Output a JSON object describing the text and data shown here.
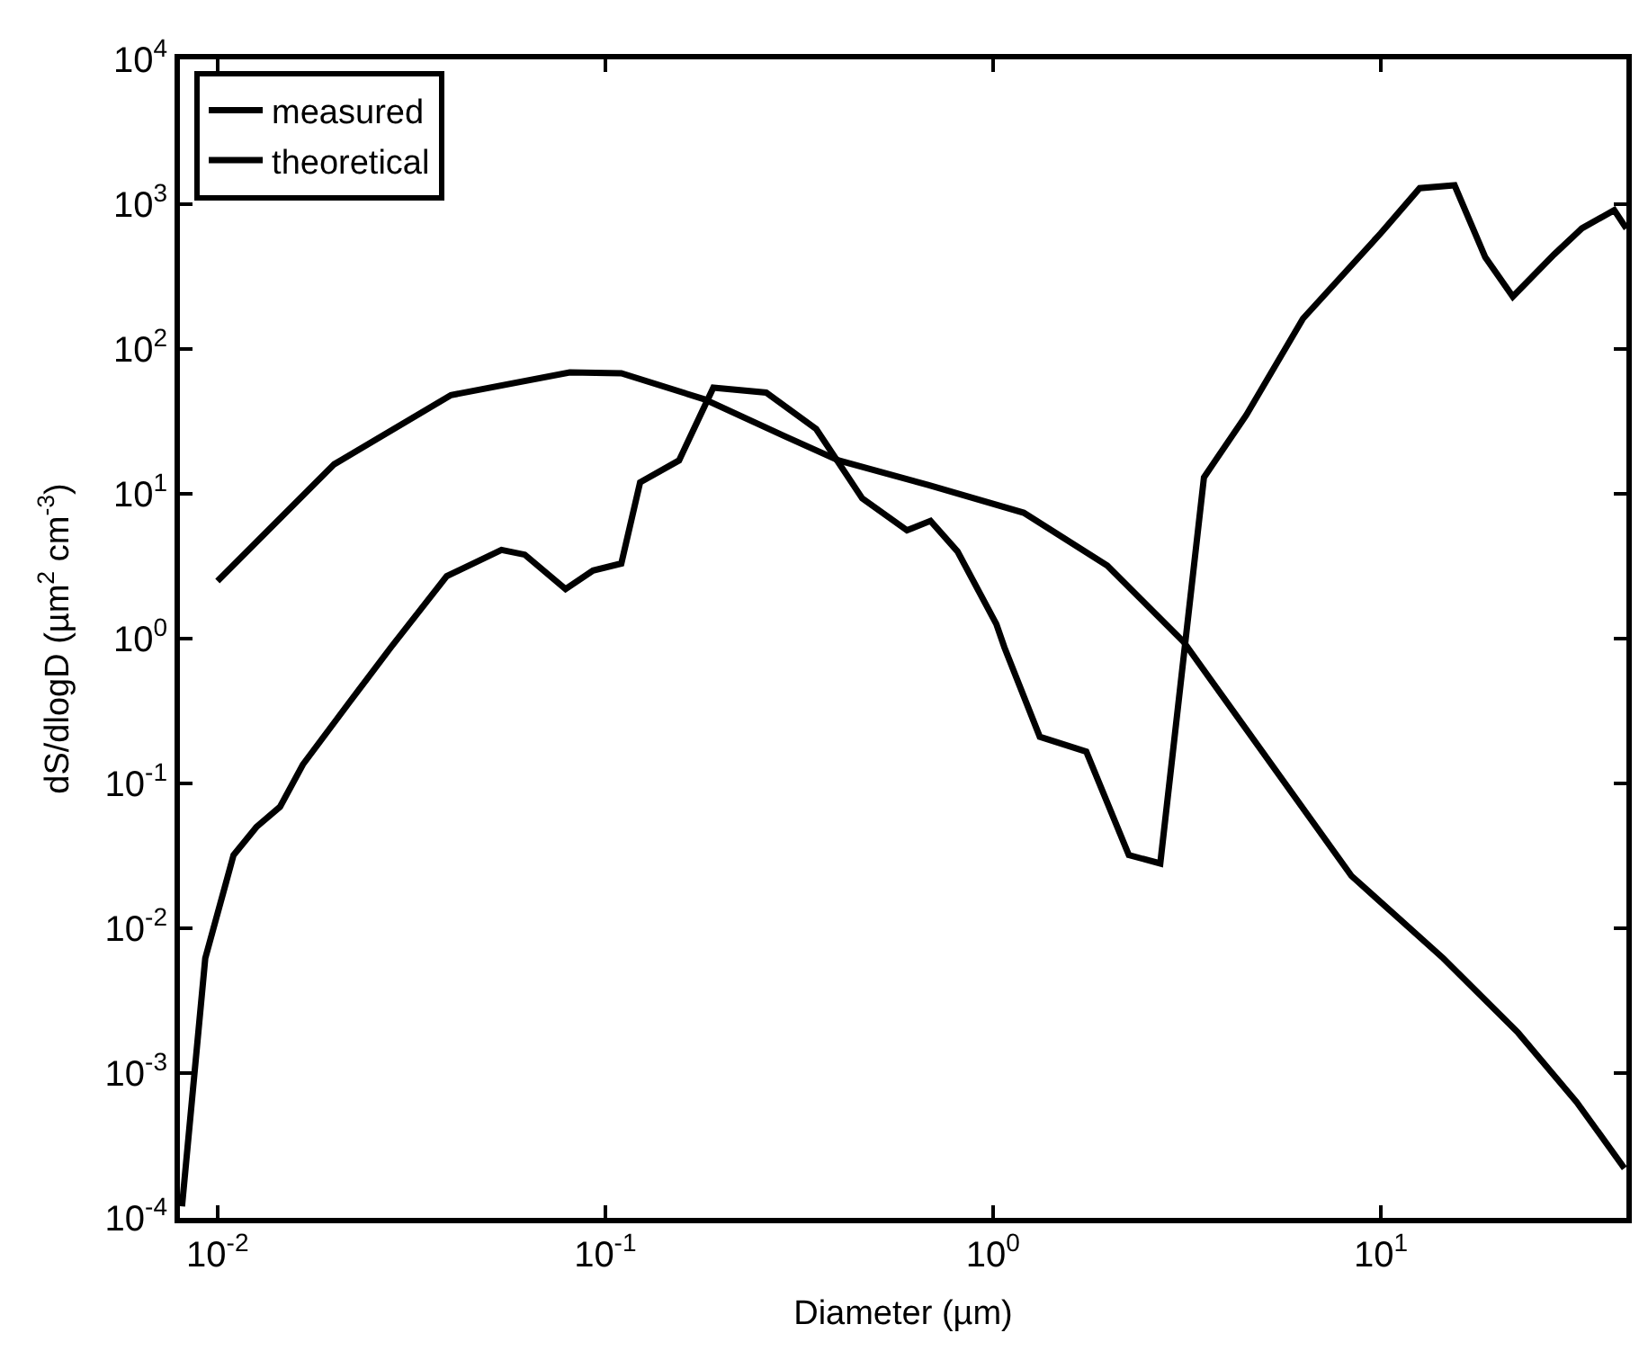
{
  "chart_data": {
    "type": "line",
    "xlabel": "Diameter (µm)",
    "ylabel": "dS/dlogD (µm$^{2}$ cm$^{-3}$)",
    "log": "xy",
    "legend": "top left",
    "marker": "none",
    "line_style": "solid",
    "xlim": [
      0.008,
      43
    ],
    "ylim": [
      0.0001,
      10000
    ],
    "xticks": [
      {
        "value": 0.01,
        "label": "10$^{-2}$"
      },
      {
        "value": 0.1,
        "label": "10$^{-1}$"
      },
      {
        "value": 1,
        "label": "10$^{0}$"
      },
      {
        "value": 10,
        "label": "10$^{1}$"
      }
    ],
    "yticks": [
      {
        "value": 0.0001,
        "label": "10$^{-4}$"
      },
      {
        "value": 0.001,
        "label": "10$^{-3}$"
      },
      {
        "value": 0.01,
        "label": "10$^{-2}$"
      },
      {
        "value": 0.1,
        "label": "10$^{-1}$"
      },
      {
        "value": 1,
        "label": "10$^{0}$"
      },
      {
        "value": 10,
        "label": "10$^{1}$"
      },
      {
        "value": 100,
        "label": "10$^{2}$"
      },
      {
        "value": 1000,
        "label": "10$^{3}$"
      },
      {
        "value": 10000,
        "label": "10$^{4}$"
      }
    ],
    "series": [
      {
        "name": "measured",
        "color": "#000000",
        "x": [
          0.0081,
          0.0093,
          0.011,
          0.0126,
          0.0145,
          0.0166,
          0.022,
          0.028,
          0.039,
          0.054,
          0.062,
          0.079,
          0.093,
          0.11,
          0.123,
          0.155,
          0.19,
          0.26,
          0.35,
          0.46,
          0.6,
          0.69,
          0.81,
          1.02,
          1.07,
          1.32,
          1.74,
          2.24,
          2.7,
          3.5,
          4.5,
          6.3,
          10,
          12.6,
          15.5,
          18.6,
          21.9,
          28,
          33,
          40,
          43
        ],
        "values": [
          0.00012,
          0.0062,
          0.032,
          0.05,
          0.069,
          0.135,
          0.37,
          0.87,
          2.7,
          4.1,
          3.8,
          2.2,
          2.95,
          3.3,
          12,
          17,
          54,
          50,
          28,
          9.3,
          5.6,
          6.5,
          4.0,
          1.26,
          0.87,
          0.21,
          0.166,
          0.032,
          0.028,
          13,
          35,
          162,
          630,
          1290,
          1350,
          430,
          230,
          450,
          680,
          910,
          680
        ]
      },
      {
        "name": "theoretical",
        "color": "#000000",
        "x": [
          0.01,
          0.02,
          0.04,
          0.081,
          0.11,
          0.18,
          0.29,
          0.4,
          0.68,
          1.2,
          1.97,
          3.1,
          8.4,
          14.5,
          22.6,
          32,
          42.5
        ],
        "values": [
          2.5,
          16,
          48,
          69,
          68,
          45,
          25,
          17,
          11.5,
          7.4,
          3.2,
          0.95,
          0.023,
          0.0062,
          0.0019,
          0.00063,
          0.00022
        ]
      }
    ]
  }
}
